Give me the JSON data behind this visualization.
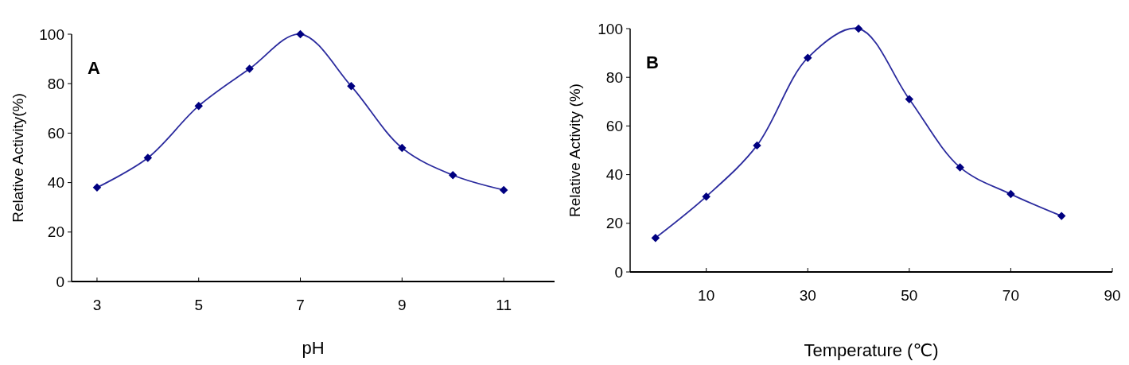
{
  "chart_data": [
    {
      "type": "line",
      "title": "A",
      "xlabel": "pH",
      "ylabel": "Relative Activity(%)",
      "x": [
        3,
        4,
        5,
        6,
        7,
        8,
        9,
        10,
        11
      ],
      "xlim": [
        2.5,
        12
      ],
      "xticks": [
        3,
        5,
        7,
        9,
        11
      ],
      "ylim": [
        0,
        100
      ],
      "yticks": [
        0,
        20,
        40,
        60,
        80,
        100
      ],
      "marker": "diamond",
      "line_style": "solid",
      "series": [
        {
          "color": "#2b2b9e",
          "values": [
            38,
            50,
            71,
            86,
            100,
            79,
            54,
            43,
            37
          ]
        }
      ]
    },
    {
      "type": "line",
      "title": "B",
      "xlabel": "Temperature (℃)",
      "ylabel": "Relative Activity (%)",
      "x": [
        0,
        10,
        20,
        30,
        40,
        50,
        60,
        70,
        80
      ],
      "xlim": [
        -5,
        90
      ],
      "xticks": [
        10,
        30,
        50,
        70,
        90
      ],
      "ylim": [
        0,
        100
      ],
      "yticks": [
        0,
        20,
        40,
        60,
        80,
        100
      ],
      "marker": "diamond",
      "line_style": "solid",
      "series": [
        {
          "color": "#2b2b9e",
          "values": [
            14,
            31,
            52,
            88,
            100,
            71,
            43,
            32,
            23
          ]
        }
      ]
    }
  ]
}
